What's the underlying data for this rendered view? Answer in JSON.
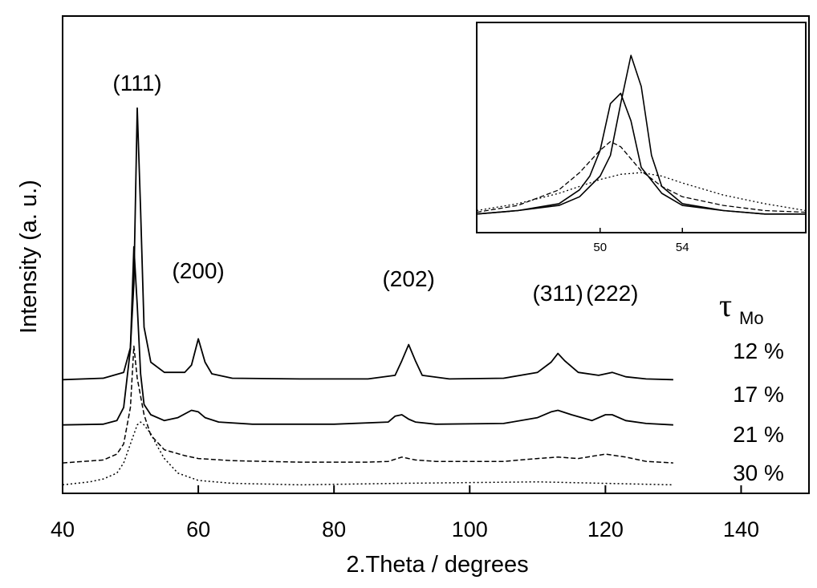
{
  "chart_data": [
    {
      "type": "line",
      "title": "",
      "xlabel": "2.Theta / degrees",
      "ylabel": "Intensity (a. u.)",
      "xlim": [
        40,
        150
      ],
      "xticks": [
        40,
        60,
        80,
        100,
        120,
        140
      ],
      "y_units": "arbitrary (stacked, offset)",
      "grid": false,
      "legend_title": "τ",
      "legend_title_sub": "Mo",
      "peak_labels": [
        {
          "text": "(111)",
          "x": 51
        },
        {
          "text": "(200)",
          "x": 60
        },
        {
          "text": "(202)",
          "x": 91
        },
        {
          "text": "(311)",
          "x": 113
        },
        {
          "text": "(222)",
          "x": 121
        }
      ],
      "series": [
        {
          "name": "12 %",
          "style": "solid",
          "baseline": 0.74,
          "x": [
            40,
            46,
            49,
            50,
            50.5,
            51,
            51.5,
            52,
            53,
            55,
            58,
            59,
            60,
            61,
            62,
            65,
            75,
            85,
            89,
            90,
            91,
            92,
            93,
            97,
            105,
            110,
            112,
            113,
            114,
            116,
            119,
            121,
            123,
            126,
            130
          ],
          "values": [
            0.74,
            0.75,
            0.79,
            0.96,
            1.4,
            2.6,
            1.9,
            1.1,
            0.86,
            0.79,
            0.79,
            0.84,
            1.02,
            0.86,
            0.78,
            0.75,
            0.745,
            0.745,
            0.77,
            0.87,
            0.98,
            0.87,
            0.77,
            0.745,
            0.75,
            0.79,
            0.86,
            0.92,
            0.87,
            0.79,
            0.77,
            0.79,
            0.76,
            0.745,
            0.74
          ]
        },
        {
          "name": "17 %",
          "style": "solid",
          "baseline": 0.43,
          "x": [
            40,
            46,
            48,
            49,
            50,
            50.5,
            51,
            51.5,
            52,
            53,
            55,
            57,
            59,
            60,
            61,
            63,
            68,
            80,
            88,
            89,
            90,
            91,
            92,
            95,
            105,
            110,
            112,
            113,
            115,
            118,
            120,
            121,
            123,
            126,
            130
          ],
          "values": [
            0.43,
            0.435,
            0.46,
            0.55,
            0.95,
            1.65,
            1.25,
            0.78,
            0.57,
            0.5,
            0.46,
            0.48,
            0.53,
            0.52,
            0.48,
            0.45,
            0.435,
            0.435,
            0.45,
            0.49,
            0.5,
            0.47,
            0.45,
            0.435,
            0.44,
            0.48,
            0.52,
            0.53,
            0.5,
            0.46,
            0.5,
            0.5,
            0.46,
            0.44,
            0.43
          ]
        },
        {
          "name": "21 %",
          "style": "dashed",
          "baseline": 0.17,
          "x": [
            40,
            46,
            48,
            49,
            50,
            50.5,
            51,
            52,
            53,
            55,
            58,
            60,
            65,
            75,
            85,
            88,
            90,
            92,
            95,
            105,
            110,
            113,
            116,
            120,
            123,
            126,
            130
          ],
          "values": [
            0.17,
            0.19,
            0.23,
            0.3,
            0.55,
            0.97,
            0.75,
            0.5,
            0.36,
            0.26,
            0.22,
            0.2,
            0.185,
            0.175,
            0.175,
            0.18,
            0.21,
            0.19,
            0.18,
            0.18,
            0.2,
            0.21,
            0.2,
            0.23,
            0.21,
            0.18,
            0.17
          ]
        },
        {
          "name": "30 %",
          "style": "dotted",
          "baseline": 0.0,
          "x": [
            40,
            44,
            46,
            48,
            49,
            50,
            51,
            51.5,
            52,
            53,
            54,
            55,
            57,
            60,
            65,
            75,
            90,
            110,
            130
          ],
          "values": [
            0.02,
            0.04,
            0.06,
            0.1,
            0.17,
            0.3,
            0.43,
            0.45,
            0.43,
            0.37,
            0.28,
            0.2,
            0.1,
            0.05,
            0.03,
            0.02,
            0.03,
            0.04,
            0.02
          ]
        }
      ]
    },
    {
      "type": "line",
      "title": "",
      "xlabel": "",
      "ylabel": "",
      "xlim": [
        44,
        60
      ],
      "xticks": [
        50,
        54
      ],
      "grid": false,
      "series": [
        {
          "style": "solid",
          "x": [
            44,
            46,
            48,
            49,
            50,
            50.5,
            51,
            51.5,
            52,
            52.5,
            53,
            54,
            56,
            58,
            60
          ],
          "values": [
            0.08,
            0.1,
            0.13,
            0.18,
            0.3,
            0.42,
            0.72,
            1.0,
            0.82,
            0.42,
            0.24,
            0.14,
            0.1,
            0.08,
            0.08
          ]
        },
        {
          "style": "solid",
          "x": [
            44,
            46,
            48,
            49,
            49.5,
            50,
            50.5,
            51,
            51.5,
            52,
            53,
            54,
            56,
            58,
            60
          ],
          "values": [
            0.08,
            0.1,
            0.14,
            0.22,
            0.3,
            0.45,
            0.72,
            0.78,
            0.62,
            0.35,
            0.2,
            0.13,
            0.1,
            0.08,
            0.08
          ]
        },
        {
          "style": "dashed",
          "x": [
            44,
            46,
            48,
            49,
            50,
            50.5,
            51,
            52,
            53,
            54,
            56,
            58,
            60
          ],
          "values": [
            0.09,
            0.13,
            0.22,
            0.32,
            0.45,
            0.5,
            0.47,
            0.33,
            0.24,
            0.18,
            0.13,
            0.1,
            0.09
          ]
        },
        {
          "style": "dotted",
          "x": [
            44,
            46,
            48,
            50,
            51,
            52,
            53,
            54,
            56,
            58,
            60
          ],
          "values": [
            0.1,
            0.14,
            0.2,
            0.28,
            0.31,
            0.32,
            0.3,
            0.26,
            0.19,
            0.14,
            0.1
          ]
        }
      ]
    }
  ]
}
